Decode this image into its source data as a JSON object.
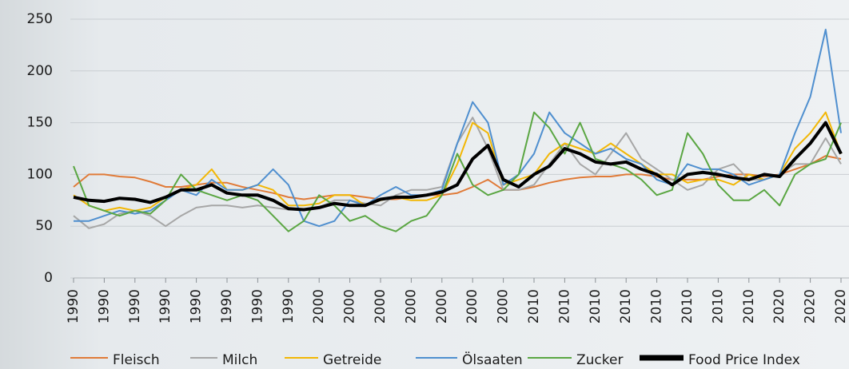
{
  "chart_data": {
    "type": "line",
    "categories": [
      "1990",
      null,
      "1990",
      null,
      "1990",
      null,
      "1990",
      null,
      "1990",
      null,
      "1990",
      null,
      "1990",
      null,
      "1990",
      null,
      "2000",
      null,
      "2000",
      null,
      "2000",
      null,
      "2000",
      null,
      "2000",
      null,
      "2000",
      null,
      "2000",
      null,
      "2010",
      null,
      "2010",
      null,
      "2010",
      null,
      "2010",
      null,
      "2010",
      null,
      "2010",
      null,
      "2010",
      null,
      "2010",
      null,
      "2020",
      null,
      "2020",
      null,
      "2020"
    ],
    "series": [
      {
        "name": "Fleisch",
        "color": "#e07b39",
        "values": [
          88,
          100,
          100,
          98,
          97,
          93,
          88,
          88,
          90,
          92,
          92,
          88,
          85,
          82,
          78,
          76,
          78,
          80,
          80,
          78,
          76,
          76,
          78,
          80,
          80,
          82,
          88,
          95,
          85,
          85,
          88,
          92,
          95,
          97,
          98,
          98,
          100,
          100,
          98,
          95,
          95,
          95,
          98,
          100,
          100,
          98,
          100,
          105,
          110,
          118,
          115
        ]
      },
      {
        "name": "Milch",
        "color": "#a6a6a6",
        "values": [
          60,
          48,
          52,
          62,
          65,
          60,
          50,
          60,
          68,
          70,
          70,
          68,
          70,
          68,
          66,
          66,
          68,
          75,
          75,
          72,
          70,
          80,
          85,
          85,
          88,
          130,
          155,
          125,
          85,
          85,
          90,
          110,
          130,
          110,
          100,
          120,
          140,
          115,
          105,
          95,
          85,
          90,
          105,
          110,
          95,
          95,
          100,
          110,
          110,
          135,
          110
        ]
      },
      {
        "name": "Getreide",
        "color": "#f2b705",
        "values": [
          80,
          70,
          65,
          68,
          65,
          68,
          78,
          85,
          90,
          105,
          85,
          85,
          90,
          85,
          70,
          70,
          72,
          80,
          80,
          70,
          75,
          78,
          75,
          75,
          80,
          110,
          150,
          140,
          90,
          95,
          100,
          120,
          130,
          125,
          120,
          130,
          120,
          110,
          100,
          100,
          92,
          95,
          95,
          90,
          100,
          95,
          100,
          125,
          140,
          160,
          120
        ]
      },
      {
        "name": "Ölsaaten",
        "color": "#4f8fcf",
        "values": [
          55,
          55,
          60,
          65,
          62,
          65,
          75,
          85,
          80,
          95,
          85,
          85,
          90,
          105,
          90,
          55,
          50,
          55,
          75,
          70,
          80,
          88,
          80,
          80,
          85,
          130,
          170,
          150,
          90,
          100,
          120,
          160,
          140,
          130,
          120,
          125,
          115,
          110,
          95,
          90,
          110,
          105,
          105,
          100,
          90,
          95,
          100,
          140,
          175,
          240,
          140
        ]
      },
      {
        "name": "Zucker",
        "color": "#5aa642",
        "values": [
          108,
          70,
          65,
          60,
          65,
          62,
          75,
          100,
          85,
          80,
          75,
          80,
          75,
          60,
          45,
          55,
          80,
          70,
          55,
          60,
          50,
          45,
          55,
          60,
          80,
          120,
          90,
          80,
          85,
          100,
          160,
          145,
          120,
          150,
          115,
          110,
          105,
          95,
          80,
          85,
          140,
          120,
          90,
          75,
          75,
          85,
          70,
          100,
          110,
          115,
          150
        ]
      },
      {
        "name": "Food Price Index",
        "color": "#000000",
        "values": [
          78,
          75,
          74,
          77,
          76,
          73,
          78,
          85,
          85,
          90,
          82,
          80,
          80,
          75,
          67,
          66,
          68,
          72,
          70,
          70,
          76,
          78,
          78,
          80,
          83,
          90,
          115,
          128,
          95,
          88,
          100,
          108,
          125,
          120,
          112,
          110,
          112,
          105,
          100,
          90,
          100,
          102,
          100,
          97,
          95,
          100,
          98,
          115,
          130,
          150,
          120
        ]
      }
    ],
    "ylim": [
      0,
      250
    ],
    "yticks": [
      0,
      50,
      100,
      150,
      200,
      250
    ],
    "grid": true
  }
}
